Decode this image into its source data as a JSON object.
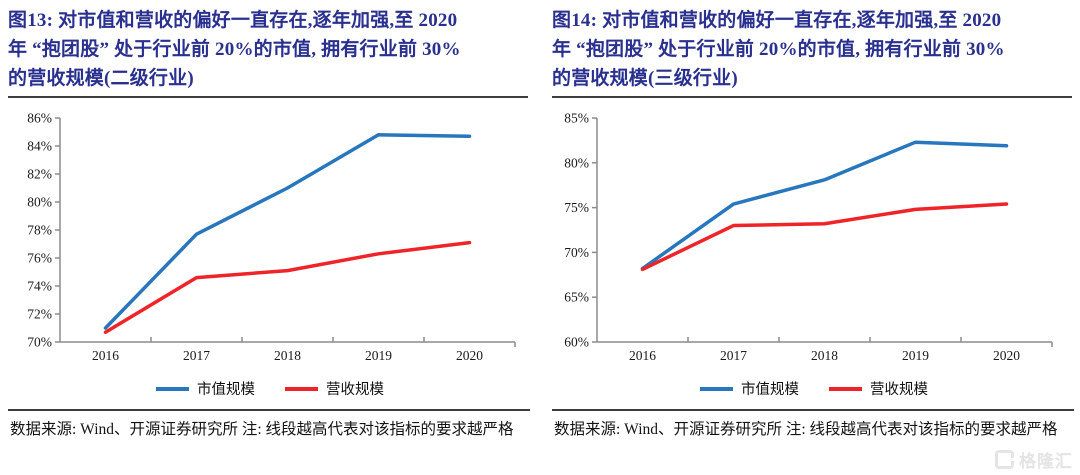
{
  "watermark": {
    "label": "格隆汇",
    "icon": "gelonghui-logo"
  },
  "chart_data": [
    {
      "figure_label": "图13",
      "type": "line",
      "title": "图13: 对市值和营收的偏好一直存在,逐年加强,至 2020 年 “抱团股” 处于行业前 20%的市值, 拥有行业前 30% 的营收规模(二级行业)",
      "title_lines": [
        "图13: 对市值和营收的偏好一直存在,逐年加强,至 2020",
        "年 “抱团股” 处于行业前 20%的市值, 拥有行业前 30%",
        "的营收规模(二级行业)"
      ],
      "categories": [
        "2016",
        "2017",
        "2018",
        "2019",
        "2020"
      ],
      "series": [
        {
          "name": "市值规模",
          "color": "#2776be",
          "values": [
            71.0,
            77.7,
            81.0,
            84.8,
            84.7
          ]
        },
        {
          "name": "营收规模",
          "color": "#ef2428",
          "values": [
            70.7,
            74.6,
            75.1,
            76.3,
            77.1
          ]
        }
      ],
      "xlabel": "",
      "ylabel": "",
      "ylim": [
        70,
        86
      ],
      "yticks": [
        86,
        84,
        82,
        80,
        78,
        76,
        74,
        72,
        70
      ],
      "ytick_suffix": "%",
      "grid": false,
      "legend_position": "bottom",
      "source_note": "数据来源: Wind、开源证券研究所 注: 线段越高代表对该指标的要求越严格"
    },
    {
      "figure_label": "图14",
      "type": "line",
      "title": "图14: 对市值和营收的偏好一直存在,逐年加强,至 2020 年 “抱团股” 处于行业前 20%的市值, 拥有行业前 30% 的营收规模(三级行业)",
      "title_lines": [
        "图14: 对市值和营收的偏好一直存在,逐年加强,至 2020",
        "年 “抱团股” 处于行业前 20%的市值, 拥有行业前 30%",
        "的营收规模(三级行业)"
      ],
      "categories": [
        "2016",
        "2017",
        "2018",
        "2019",
        "2020"
      ],
      "series": [
        {
          "name": "市值规模",
          "color": "#2776be",
          "values": [
            68.2,
            75.4,
            78.1,
            82.3,
            81.9
          ]
        },
        {
          "name": "营收规模",
          "color": "#ef2428",
          "values": [
            68.1,
            73.0,
            73.2,
            74.8,
            75.4
          ]
        }
      ],
      "xlabel": "",
      "ylabel": "",
      "ylim": [
        60,
        85
      ],
      "yticks": [
        85,
        80,
        75,
        70,
        65,
        60
      ],
      "ytick_suffix": "%",
      "grid": false,
      "legend_position": "bottom",
      "source_note": "数据来源: Wind、开源证券研究所 注: 线段越高代表对该指标的要求越严格"
    }
  ]
}
